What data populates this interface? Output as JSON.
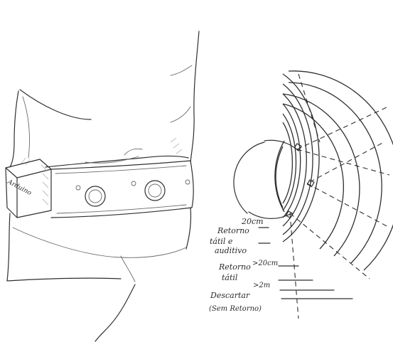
{
  "device": {
    "label": "Arduino",
    "buttons": [
      "button-left",
      "button-right"
    ]
  },
  "zones": [
    {
      "distance": "20cm",
      "label_lines": [
        "Retorno",
        "tátil e",
        "auditivo"
      ]
    },
    {
      "distance": ">20cm",
      "label_lines": [
        "Retorno",
        "tátil"
      ]
    },
    {
      "distance": ">2m",
      "label_lines": [
        "Descartar",
        "(Sem Retorno)"
      ]
    }
  ]
}
